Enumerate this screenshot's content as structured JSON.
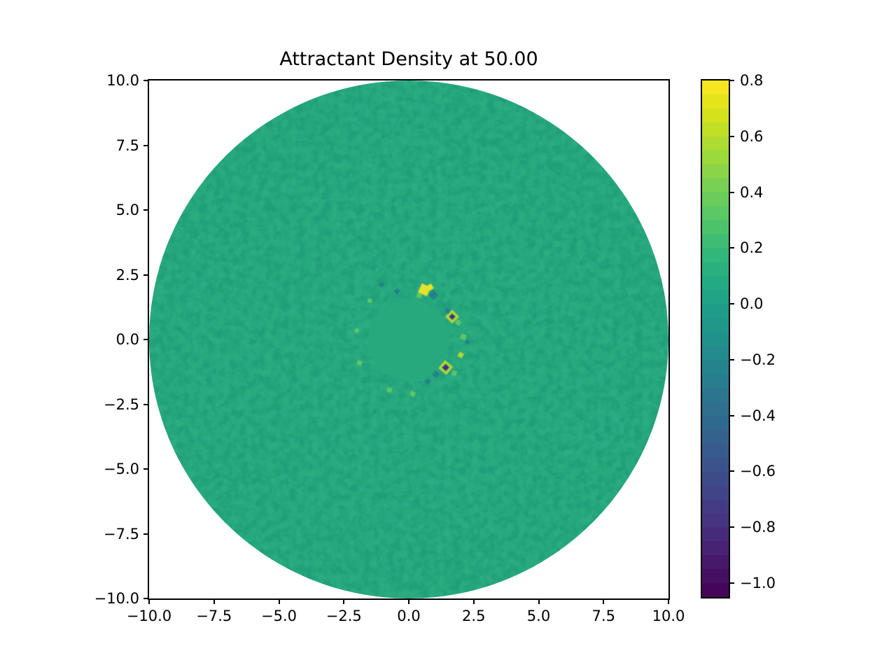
{
  "title": "Attractant Density at 50.00",
  "colors": {
    "background": "#ffffff",
    "axis": "#000000",
    "disk_base": "#27a87d",
    "mottle_dark": "#1e9a77",
    "mottle_light": "#35b288",
    "speckle_palette": {
      "yellow": "#e8e129",
      "yellow_green": "#b5d836",
      "green_light": "#5cc765",
      "teal_dark": "#20818a",
      "navy": "#333479"
    }
  },
  "axes": {
    "x_tick_labels": [
      "−10.0",
      "−7.5",
      "−5.0",
      "−2.5",
      "0.0",
      "2.5",
      "5.0",
      "7.5",
      "10.0"
    ],
    "x_tick_values": [
      -10,
      -7.5,
      -5,
      -2.5,
      0,
      2.5,
      5,
      7.5,
      10
    ],
    "y_tick_labels": [
      "10.0",
      "7.5",
      "5.0",
      "2.5",
      "0.0",
      "−2.5",
      "−5.0",
      "−7.5",
      "−10.0"
    ],
    "y_tick_values": [
      10,
      7.5,
      5,
      2.5,
      0,
      -2.5,
      -5,
      -7.5,
      -10
    ],
    "x_range": [
      -10,
      10
    ],
    "y_range": [
      -10,
      10
    ]
  },
  "colorbar": {
    "tick_labels": [
      "0.8",
      "0.6",
      "0.4",
      "0.2",
      "0.0",
      "−0.2",
      "−0.4",
      "−0.6",
      "−0.8",
      "−1.0"
    ],
    "tick_values": [
      0.8,
      0.6,
      0.4,
      0.2,
      0.0,
      -0.2,
      -0.4,
      -0.6,
      -0.8,
      -1.0
    ],
    "vmin": -1.05,
    "vmax": 0.8,
    "level_step": 0.05,
    "cmap": "viridis",
    "viridis_anchors": [
      [
        0.0,
        "#440154"
      ],
      [
        0.05,
        "#471365"
      ],
      [
        0.1,
        "#482475"
      ],
      [
        0.15,
        "#463480"
      ],
      [
        0.2,
        "#414487"
      ],
      [
        0.25,
        "#3b528b"
      ],
      [
        0.3,
        "#355f8d"
      ],
      [
        0.35,
        "#2f6c8e"
      ],
      [
        0.4,
        "#2a788e"
      ],
      [
        0.45,
        "#25848e"
      ],
      [
        0.5,
        "#21918c"
      ],
      [
        0.55,
        "#1e9c89"
      ],
      [
        0.6,
        "#22a884"
      ],
      [
        0.65,
        "#2eb37c"
      ],
      [
        0.7,
        "#44bf70"
      ],
      [
        0.75,
        "#5ec962"
      ],
      [
        0.8,
        "#7ad151"
      ],
      [
        0.85,
        "#9bd93c"
      ],
      [
        0.9,
        "#bddf26"
      ],
      [
        0.95,
        "#dfe318"
      ],
      [
        1.0,
        "#fde725"
      ]
    ]
  },
  "chart_data": {
    "type": "heatmap",
    "title": "Attractant Density at 50.00",
    "xlabel": "",
    "ylabel": "",
    "xlim": [
      -10,
      10
    ],
    "ylim": [
      -10,
      10
    ],
    "x_ticks": [
      -10,
      -7.5,
      -5,
      -2.5,
      0,
      2.5,
      5,
      7.5,
      10
    ],
    "y_ticks": [
      10,
      7.5,
      5,
      2.5,
      0,
      -2.5,
      -5,
      -7.5,
      -10
    ],
    "grid": false,
    "legend": false,
    "colormap": "viridis",
    "color_range": [
      -1.05,
      0.8
    ],
    "colorbar_ticks": [
      0.8,
      0.6,
      0.4,
      0.2,
      0.0,
      -0.2,
      -0.4,
      -0.6,
      -0.8,
      -1.0
    ],
    "colorbar_position": "right",
    "domain": {
      "shape": "disk",
      "center": [
        0,
        0
      ],
      "radius": 10
    },
    "field": {
      "background_value": 0.05,
      "description": "Nearly uniform attractant density (~0.05) over a circular domain of radius 10 with fine mottled noise; a ring of small positive (up to ~0.8) and negative (down to ~-1.0) anomalies at radius ~2 around the origin; smooth flat patch at the very center.",
      "anomaly_ring_radius": 2.0
    },
    "speckles": [
      {
        "x": 0.6,
        "y": 1.92,
        "s": 14,
        "rot": 25,
        "c": "yellow"
      },
      {
        "x": 0.82,
        "y": 2.02,
        "s": 8,
        "rot": 60,
        "c": "yellow"
      },
      {
        "x": 0.95,
        "y": 1.72,
        "s": 10,
        "rot": 45,
        "c": "teal_dark"
      },
      {
        "x": 0.4,
        "y": 1.7,
        "s": 7,
        "rot": 10,
        "c": "green_light"
      },
      {
        "x": 1.67,
        "y": 0.88,
        "s": 14,
        "rot": 45,
        "c": "yellow_green"
      },
      {
        "x": 1.67,
        "y": 0.88,
        "s": 7,
        "rot": 45,
        "c": "navy"
      },
      {
        "x": 1.5,
        "y": 1.1,
        "s": 7,
        "rot": 20,
        "c": "teal_dark"
      },
      {
        "x": 1.9,
        "y": 0.65,
        "s": 7,
        "rot": 35,
        "c": "green_light"
      },
      {
        "x": 2.1,
        "y": 0.1,
        "s": 8,
        "rot": 20,
        "c": "green_light"
      },
      {
        "x": 2.25,
        "y": -0.1,
        "s": 6,
        "rot": 45,
        "c": "teal_dark"
      },
      {
        "x": 2.0,
        "y": -0.6,
        "s": 7,
        "rot": 30,
        "c": "yellow_green"
      },
      {
        "x": 1.42,
        "y": -1.08,
        "s": 15,
        "rot": 40,
        "c": "yellow_green"
      },
      {
        "x": 1.42,
        "y": -1.08,
        "s": 8,
        "rot": 45,
        "c": "navy"
      },
      {
        "x": 1.05,
        "y": -1.35,
        "s": 8,
        "rot": 45,
        "c": "teal_dark"
      },
      {
        "x": 1.75,
        "y": -1.3,
        "s": 7,
        "rot": 15,
        "c": "green_light"
      },
      {
        "x": 0.72,
        "y": -1.62,
        "s": 7,
        "rot": 45,
        "c": "teal_dark"
      },
      {
        "x": 0.15,
        "y": -2.1,
        "s": 7,
        "rot": 30,
        "c": "green_light"
      },
      {
        "x": -0.75,
        "y": -1.95,
        "s": 7,
        "rot": 0,
        "c": "green_light"
      },
      {
        "x": -1.9,
        "y": -0.9,
        "s": 7,
        "rot": 20,
        "c": "green_light"
      },
      {
        "x": -2.0,
        "y": 0.35,
        "s": 6,
        "rot": 45,
        "c": "green_light"
      },
      {
        "x": -0.45,
        "y": 1.86,
        "s": 7,
        "rot": 45,
        "c": "teal_dark"
      },
      {
        "x": -1.05,
        "y": 2.12,
        "s": 6,
        "rot": 20,
        "c": "teal_dark"
      },
      {
        "x": -1.5,
        "y": 1.5,
        "s": 6,
        "rot": 10,
        "c": "green_light"
      }
    ]
  }
}
